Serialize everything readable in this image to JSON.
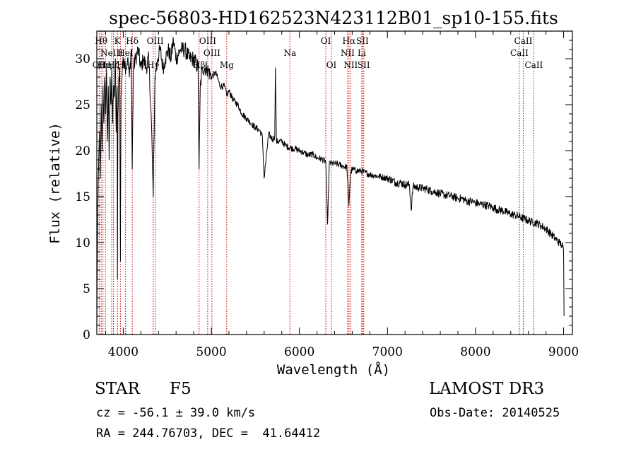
{
  "chart_data": {
    "type": "line",
    "title": "spec-56803-HD162523N423112B01_sp10-155.fits",
    "xlabel": "Wavelength (Å)",
    "ylabel": "Flux (relative)",
    "xlim": [
      3700,
      9100
    ],
    "ylim": [
      0,
      33
    ],
    "xticks": [
      4000,
      5000,
      6000,
      7000,
      8000,
      9000
    ],
    "yticks": [
      0,
      5,
      10,
      15,
      20,
      25,
      30
    ],
    "grid": false,
    "series": [
      {
        "name": "spectrum",
        "x": [
          3700,
          3710,
          3720,
          3730,
          3740,
          3750,
          3760,
          3770,
          3780,
          3790,
          3800,
          3810,
          3820,
          3830,
          3840,
          3850,
          3860,
          3870,
          3880,
          3890,
          3900,
          3910,
          3920,
          3930,
          3934,
          3940,
          3950,
          3960,
          3968,
          3975,
          3990,
          4010,
          4030,
          4050,
          4070,
          4090,
          4102,
          4115,
          4140,
          4170,
          4200,
          4230,
          4260,
          4290,
          4320,
          4340,
          4360,
          4390,
          4420,
          4450,
          4480,
          4510,
          4540,
          4570,
          4600,
          4650,
          4700,
          4750,
          4800,
          4850,
          4861,
          4875,
          4900,
          4950,
          5000,
          5050,
          5100,
          5150,
          5175,
          5200,
          5250,
          5300,
          5350,
          5400,
          5450,
          5500,
          5550,
          5580,
          5600,
          5650,
          5700,
          5720,
          5728,
          5740,
          5800,
          5850,
          5900,
          5950,
          6000,
          6050,
          6100,
          6150,
          6200,
          6250,
          6300,
          6320,
          6340,
          6400,
          6450,
          6500,
          6540,
          6562,
          6580,
          6600,
          6650,
          6700,
          6750,
          6800,
          6850,
          6900,
          6950,
          7000,
          7050,
          7100,
          7150,
          7200,
          7250,
          7270,
          7290,
          7350,
          7400,
          7450,
          7500,
          7550,
          7600,
          7650,
          7700,
          7750,
          7800,
          7850,
          7900,
          7950,
          8000,
          8050,
          8100,
          8150,
          8200,
          8250,
          8300,
          8350,
          8400,
          8450,
          8500,
          8550,
          8600,
          8650,
          8700,
          8750,
          8800,
          8850,
          8900,
          8950,
          8970,
          8990,
          9000,
          9005
        ],
        "y": [
          0.5,
          13,
          18,
          22,
          17,
          25,
          20,
          27,
          23,
          28,
          24,
          29,
          21,
          27,
          19,
          28,
          25,
          29,
          23,
          27,
          26,
          30,
          22,
          27,
          6,
          24,
          28,
          29,
          8,
          26,
          29,
          30,
          29,
          30,
          28,
          31,
          18,
          29,
          30,
          31,
          29,
          30,
          29,
          30,
          23,
          15,
          28,
          30,
          31,
          29,
          30,
          31,
          30,
          32,
          30,
          31,
          31,
          30,
          30,
          29,
          18,
          27,
          29,
          29,
          28,
          28.5,
          27,
          27,
          26,
          26.5,
          25.5,
          25,
          24,
          23.5,
          23,
          22.5,
          22.2,
          21.5,
          17,
          21.8,
          21.2,
          21.6,
          29,
          21,
          21,
          20.5,
          20.3,
          20.2,
          20,
          19.8,
          19.5,
          19.6,
          19.2,
          19.1,
          18.8,
          12,
          18.6,
          18.6,
          18.5,
          18.3,
          18.2,
          14,
          17.5,
          18.0,
          17.8,
          17.8,
          17.6,
          17.4,
          17.3,
          17.2,
          17.1,
          17.0,
          16.8,
          16.5,
          16.5,
          16.3,
          16.3,
          13.5,
          16.1,
          16.0,
          15.9,
          15.8,
          15.6,
          15.5,
          15.3,
          15.2,
          15.1,
          15.0,
          14.8,
          14.8,
          14.5,
          14.5,
          14.3,
          14.2,
          14.1,
          14.0,
          13.8,
          13.6,
          13.5,
          13.3,
          13.1,
          13.0,
          12.8,
          12.6,
          12.4,
          12.2,
          12.1,
          11.8,
          11.5,
          11.0,
          10.5,
          10.0,
          9.8,
          9.6,
          9.0,
          2.0
        ]
      }
    ],
    "line_markers": [
      {
        "wavelength": 3727,
        "label": "OII",
        "row": 3
      },
      {
        "wavelength": 3750,
        "label": "Hθ",
        "row": 1
      },
      {
        "wavelength": 3770,
        "label": "Hι",
        "row": 3
      },
      {
        "wavelength": 3798,
        "label": "Hη",
        "row": 3
      },
      {
        "wavelength": 3869,
        "label": "NeIII",
        "row": 2
      },
      {
        "wavelength": 3889,
        "label": "Hζ",
        "row": 3
      },
      {
        "wavelength": 3934,
        "label": "K",
        "row": 1
      },
      {
        "wavelength": 3968,
        "label": "H",
        "row": 3
      },
      {
        "wavelength": 4026,
        "label": "HeI",
        "row": 2
      },
      {
        "wavelength": 4102,
        "label": "Hδ",
        "row": 1
      },
      {
        "wavelength": 4340,
        "label": "Hγ",
        "row": 3
      },
      {
        "wavelength": 4363,
        "label": "OIII",
        "row": 1
      },
      {
        "wavelength": 4861,
        "label": "Hβ",
        "row": 3
      },
      {
        "wavelength": 4959,
        "label": "OIII",
        "row": 1
      },
      {
        "wavelength": 5007,
        "label": "OIII",
        "row": 2
      },
      {
        "wavelength": 5175,
        "label": "Mg",
        "row": 3
      },
      {
        "wavelength": 5893,
        "label": "Na",
        "row": 2
      },
      {
        "wavelength": 6300,
        "label": "OI",
        "row": 1
      },
      {
        "wavelength": 6364,
        "label": "OI",
        "row": 3
      },
      {
        "wavelength": 6548,
        "label": "NII",
        "row": 2
      },
      {
        "wavelength": 6563,
        "label": "Hα",
        "row": 1
      },
      {
        "wavelength": 6583,
        "label": "NII",
        "row": 3
      },
      {
        "wavelength": 6708,
        "label": "Li",
        "row": 2
      },
      {
        "wavelength": 6716,
        "label": "SII",
        "row": 1
      },
      {
        "wavelength": 6731,
        "label": "SII",
        "row": 3
      },
      {
        "wavelength": 8498,
        "label": "CaII",
        "row": 2
      },
      {
        "wavelength": 8542,
        "label": "CaII",
        "row": 1
      },
      {
        "wavelength": 8662,
        "label": "CaII",
        "row": 3
      }
    ],
    "marker_color": "#cc0000"
  },
  "info": {
    "class_label": "STAR",
    "subclass": "F5",
    "survey": "LAMOST DR3",
    "redshift_text": "cz = -56.1 ± 39.0 km/s",
    "obs_date_text": "Obs-Date: 20140525",
    "coords_text": "RA = 244.76703, DEC =  41.64412"
  }
}
